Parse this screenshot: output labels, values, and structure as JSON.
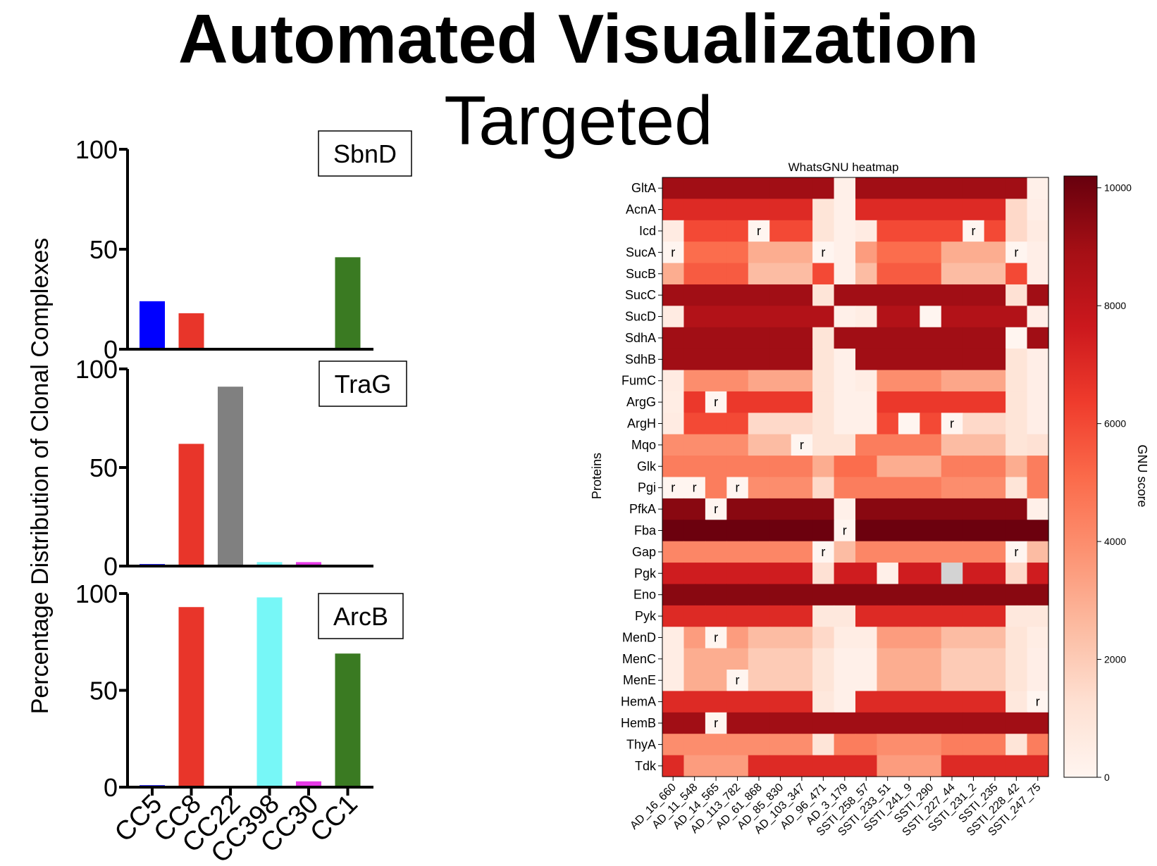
{
  "slide": {
    "title": "Automated Visualization",
    "subtitle": "Targeted"
  },
  "chart_data": [
    {
      "type": "bar",
      "ylabel": "Percentage Distribution of Clonal Complexes",
      "categories": [
        "CC5",
        "CC8",
        "CC22",
        "CC398",
        "CC30",
        "CC1"
      ],
      "ylim": [
        0,
        100
      ],
      "yticks": [
        "0",
        "50",
        "100"
      ],
      "bar_colors": [
        "#0000ff",
        "#e8352a",
        "#808080",
        "#77f7f7",
        "#e63ae6",
        "#3a7a22"
      ],
      "panels": [
        {
          "title": "SbnD",
          "values": [
            24,
            18,
            0,
            0,
            0,
            46
          ]
        },
        {
          "title": "TraG",
          "values": [
            1,
            62,
            91,
            2,
            2,
            0
          ]
        },
        {
          "title": "ArcB",
          "values": [
            1,
            93,
            0,
            98,
            3,
            69
          ]
        }
      ]
    },
    {
      "type": "heatmap",
      "title": "WhatsGNU heatmap",
      "ylabel": "Proteins",
      "colorbar_label": "GNU score",
      "colorbar_ticks": [
        0,
        2000,
        4000,
        6000,
        8000,
        10000
      ],
      "vmin": 0,
      "vmax": 10200,
      "rows": [
        "GltA",
        "AcnA",
        "Icd",
        "SucA",
        "SucB",
        "SucC",
        "SucD",
        "SdhA",
        "SdhB",
        "FumC",
        "ArgG",
        "ArgH",
        "Mqo",
        "Glk",
        "Pgi",
        "PfkA",
        "Fba",
        "Gap",
        "Pgk",
        "Eno",
        "Pyk",
        "MenD",
        "MenC",
        "MenE",
        "HemA",
        "HemB",
        "ThyA",
        "Tdk"
      ],
      "columns": [
        "AD_16_660",
        "AD_11_548",
        "AD_14_565",
        "AD_113_782",
        "AD_61_868",
        "AD_85_830",
        "AD_103_347",
        "AD_96_471",
        "AD_3_179",
        "SSTI_258_57",
        "SSTI_233_51",
        "SSTI_241_9",
        "SSTI_290",
        "SSTI_227_44",
        "SSTI_231_2",
        "SSTI_235",
        "SSTI_228_42",
        "SSTI_247_75"
      ],
      "values": [
        [
          9000,
          9000,
          9000,
          9000,
          9000,
          9000,
          9000,
          9000,
          300,
          9000,
          9000,
          9000,
          9000,
          9000,
          9000,
          9000,
          9000,
          300
        ],
        [
          7000,
          7000,
          7000,
          7000,
          7000,
          7000,
          7000,
          1000,
          300,
          7000,
          7000,
          7000,
          7000,
          7000,
          7000,
          7000,
          1500,
          400
        ],
        [
          600,
          6000,
          6000,
          6000,
          0,
          6000,
          6000,
          1000,
          300,
          600,
          6000,
          6000,
          6000,
          6000,
          0,
          6000,
          1500,
          600
        ],
        [
          0,
          5000,
          5000,
          5000,
          3000,
          3000,
          3000,
          0,
          300,
          3500,
          5000,
          5000,
          5000,
          3000,
          3000,
          3000,
          0,
          400
        ],
        [
          3000,
          5500,
          5500,
          5500,
          2500,
          2500,
          2500,
          6000,
          300,
          2500,
          5500,
          5500,
          5500,
          2500,
          2500,
          2500,
          6000,
          400
        ],
        [
          9000,
          9000,
          9000,
          9000,
          9000,
          9000,
          9000,
          1000,
          9000,
          9000,
          9000,
          9000,
          9000,
          9000,
          9000,
          9000,
          1200,
          9000
        ],
        [
          600,
          8500,
          8500,
          8500,
          8500,
          8500,
          8500,
          8500,
          300,
          500,
          8500,
          8500,
          0,
          8500,
          8500,
          8500,
          8500,
          400
        ],
        [
          9000,
          9000,
          9000,
          9000,
          9000,
          9000,
          9000,
          1000,
          9000,
          9000,
          9000,
          9000,
          9000,
          9000,
          9000,
          9000,
          0,
          9000
        ],
        [
          9000,
          9000,
          9000,
          9000,
          9000,
          9000,
          9000,
          1000,
          300,
          9000,
          9000,
          9000,
          9000,
          9000,
          9000,
          9000,
          1000,
          400
        ],
        [
          600,
          4000,
          4000,
          4000,
          3200,
          3200,
          3200,
          1000,
          300,
          500,
          4000,
          4000,
          4000,
          3200,
          3200,
          3200,
          1000,
          400
        ],
        [
          500,
          6500,
          0,
          6500,
          6500,
          6500,
          6500,
          1000,
          300,
          300,
          6500,
          6500,
          6500,
          6500,
          6500,
          6500,
          1000,
          400
        ],
        [
          600,
          6000,
          6000,
          6000,
          1500,
          1500,
          1500,
          1000,
          300,
          300,
          6000,
          0,
          6000,
          0,
          1500,
          1500,
          1000,
          400
        ],
        [
          4000,
          4000,
          4000,
          4000,
          2500,
          2500,
          0,
          1000,
          1000,
          4500,
          4500,
          4500,
          4500,
          2500,
          2500,
          2500,
          1000,
          1200
        ],
        [
          4500,
          4500,
          4500,
          4500,
          4500,
          4500,
          4500,
          3000,
          5000,
          5000,
          3000,
          3000,
          3000,
          4500,
          4500,
          4500,
          3000,
          4500
        ],
        [
          0,
          0,
          4500,
          0,
          4000,
          4000,
          4000,
          1500,
          4500,
          4500,
          4500,
          4500,
          4500,
          4000,
          4000,
          4000,
          1000,
          4500
        ],
        [
          9500,
          9500,
          0,
          9500,
          9500,
          9500,
          9500,
          9500,
          300,
          9500,
          9500,
          9500,
          9500,
          9500,
          9500,
          9500,
          9500,
          300
        ],
        [
          10100,
          10100,
          10100,
          10100,
          10100,
          10100,
          10100,
          10100,
          0,
          10100,
          10100,
          10100,
          10100,
          10100,
          10100,
          10100,
          10100,
          10100
        ],
        [
          4200,
          4200,
          4200,
          4200,
          4200,
          4200,
          4200,
          0,
          2500,
          4200,
          4200,
          4200,
          4200,
          4200,
          4200,
          4200,
          0,
          2500
        ],
        [
          7500,
          7500,
          7500,
          7500,
          7500,
          7500,
          7500,
          1200,
          7500,
          7500,
          300,
          7500,
          7500,
          null,
          7500,
          7500,
          1500,
          7500
        ],
        [
          9500,
          9500,
          9500,
          9500,
          9500,
          9500,
          9500,
          9500,
          9500,
          9500,
          9500,
          9500,
          9500,
          9500,
          9500,
          9500,
          9500,
          9500
        ],
        [
          7000,
          7000,
          7000,
          7000,
          7000,
          7000,
          7000,
          800,
          800,
          7000,
          7000,
          7000,
          7000,
          7000,
          7000,
          7000,
          800,
          800
        ],
        [
          500,
          3500,
          0,
          3500,
          2500,
          2500,
          2500,
          1500,
          500,
          500,
          3500,
          3500,
          3500,
          2500,
          2500,
          2500,
          1000,
          500
        ],
        [
          500,
          3000,
          3000,
          3000,
          2000,
          2000,
          2000,
          1000,
          300,
          300,
          3000,
          3000,
          3000,
          2000,
          2000,
          2000,
          1000,
          400
        ],
        [
          500,
          3000,
          3000,
          0,
          2000,
          2000,
          2000,
          1000,
          300,
          300,
          3000,
          3000,
          3000,
          2000,
          2000,
          2000,
          1000,
          400
        ],
        [
          7000,
          7000,
          7000,
          7000,
          7000,
          7000,
          7000,
          800,
          300,
          7000,
          7000,
          7000,
          7000,
          7000,
          7000,
          7000,
          800,
          0
        ],
        [
          9000,
          9000,
          0,
          9000,
          9000,
          9000,
          9000,
          9000,
          9000,
          9000,
          9000,
          9000,
          9000,
          9000,
          9000,
          9000,
          9000,
          9000
        ],
        [
          4000,
          4000,
          4000,
          4000,
          4000,
          4000,
          4000,
          1000,
          4500,
          4500,
          4000,
          4000,
          4000,
          4500,
          4500,
          4500,
          1000,
          4500
        ],
        [
          7000,
          3500,
          3500,
          3500,
          7000,
          7000,
          7000,
          7000,
          7000,
          7000,
          3500,
          3500,
          3500,
          7000,
          7000,
          7000,
          7000,
          7000
        ]
      ],
      "annotation": "r",
      "annotated_cells": [
        [
          2,
          4
        ],
        [
          2,
          14
        ],
        [
          3,
          0
        ],
        [
          3,
          7
        ],
        [
          3,
          16
        ],
        [
          10,
          2
        ],
        [
          11,
          13
        ],
        [
          12,
          6
        ],
        [
          14,
          0
        ],
        [
          14,
          1
        ],
        [
          14,
          3
        ],
        [
          15,
          2
        ],
        [
          16,
          8
        ],
        [
          17,
          7
        ],
        [
          17,
          16
        ],
        [
          21,
          2
        ],
        [
          23,
          3
        ],
        [
          24,
          17
        ],
        [
          25,
          2
        ]
      ]
    }
  ]
}
